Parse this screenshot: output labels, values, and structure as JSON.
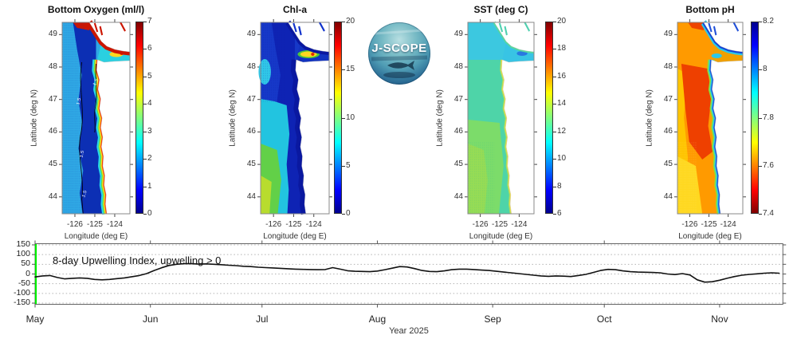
{
  "figure": {
    "background": "#ffffff"
  },
  "logo": {
    "text": "J-SCOPE"
  },
  "colormap_stops": [
    [
      "#00008f",
      0
    ],
    [
      "#0000ff",
      12
    ],
    [
      "#00ffff",
      37
    ],
    [
      "#80ff80",
      50
    ],
    [
      "#ffff00",
      63
    ],
    [
      "#ff0000",
      88
    ],
    [
      "#800000",
      100
    ]
  ],
  "panels": [
    {
      "title": "Bottom Oxygen (ml/l)",
      "xlabel": "Longitude (deg E)",
      "ylabel": "Latitude (deg N)",
      "xticks": [
        "-126",
        "-125",
        "-124"
      ],
      "yticks": [
        "49",
        "48",
        "47",
        "46",
        "45",
        "44"
      ],
      "colorbar": {
        "min": 0,
        "max": 7,
        "ticks": [
          "0",
          "1",
          "2",
          "3",
          "4",
          "5",
          "6",
          "7"
        ],
        "reversed": false
      },
      "contour_label": "1.5",
      "art": {
        "base": "#2fa8e4",
        "regions": [
          [
            "deep_mid",
            "#0c2fb4"
          ]
        ],
        "strait": "#2ad0e0",
        "blobs": [
          [
            "#ffd81e",
            80,
            40,
            10,
            3.5
          ],
          [
            "#e02800",
            88,
            39,
            3,
            2
          ]
        ],
        "coast_bands": [
          [
            "#28d8e8",
            14
          ],
          [
            "#6ee03c",
            9
          ],
          [
            "#ffe01e",
            6
          ],
          [
            "#f23c08",
            3
          ]
        ],
        "vi_bands": [
          [
            "#cc1600",
            9
          ]
        ],
        "top_blob": "#cc1600",
        "fjord": "#cc1600",
        "contour": "#000000",
        "contour_label_color": "#ffffff",
        "stipple": "#0c2fb4"
      }
    },
    {
      "title": "Chl-a",
      "xlabel": "Longitude (deg E)",
      "ylabel": "Latitude (deg N)",
      "xticks": [
        "-126",
        "-125",
        "-124"
      ],
      "yticks": [
        "49",
        "48",
        "47",
        "46",
        "45",
        "44"
      ],
      "colorbar": {
        "min": 0,
        "max": 20,
        "ticks": [
          "0",
          "5",
          "10",
          "15",
          "20"
        ],
        "reversed": false
      },
      "art": {
        "base": "#1638c8",
        "regions": [
          [
            "deep_mid",
            "#0e23b4"
          ],
          [
            "left_lower",
            "#22c4e0"
          ],
          [
            "corner_sw",
            "#62d048"
          ],
          [
            "corner_sw2",
            "#b8dc2e"
          ]
        ],
        "strait": "#1233c0",
        "blobs": [
          [
            "#30c8e8",
            6,
            62,
            9,
            16
          ],
          [
            "#50c838",
            70,
            40,
            16,
            5
          ],
          [
            "#ffd820",
            70,
            40,
            12,
            3.5
          ],
          [
            "#e02800",
            76,
            40,
            2.5,
            2
          ]
        ],
        "coast_bands": [
          [
            "#0a18a0",
            14
          ]
        ],
        "vi_bands": [
          [
            "#0a18a0",
            8
          ]
        ],
        "fjord": "#1133cc",
        "stipple": "#0a18a0"
      }
    },
    {
      "title": "SST (deg C)",
      "xlabel": "Longitude (deg E)",
      "ylabel": "Latitude (deg N)",
      "xticks": [
        "-126",
        "-125",
        "-124"
      ],
      "yticks": [
        "49",
        "48",
        "47",
        "46",
        "45",
        "44"
      ],
      "colorbar": {
        "min": 6,
        "max": 20,
        "ticks": [
          "6",
          "8",
          "10",
          "12",
          "14",
          "16",
          "18",
          "20"
        ],
        "reversed": false
      },
      "art": {
        "base": "#4ed4a8",
        "regions": [
          [
            "sst_south",
            "#7cdc6a"
          ],
          [
            "corner_sw",
            "#96dc55"
          ],
          [
            "north_band",
            "#3cc8e0"
          ]
        ],
        "strait": "#38c4e4",
        "blobs": [
          [
            "#2878e0",
            82,
            39,
            8,
            3
          ],
          [
            "#f08020",
            57,
            100,
            1.6,
            1.6
          ],
          [
            "#f09030",
            58,
            112,
            1.2,
            1.2
          ]
        ],
        "coast_bands": [
          [
            "#aade5c",
            5
          ],
          [
            "#ffe040",
            2
          ]
        ],
        "vi_bands": [
          [
            "#58d89c",
            4
          ]
        ],
        "fjord": "#50d0b0",
        "stipple": "#2ab890"
      }
    },
    {
      "title": "Bottom pH",
      "xlabel": "Longitude (deg E)",
      "ylabel": "Latitude (deg N)",
      "xticks": [
        "-126",
        "-125",
        "-124"
      ],
      "yticks": [
        "49",
        "48",
        "47",
        "46",
        "45",
        "44"
      ],
      "colorbar": {
        "min": 7.4,
        "max": 8.2,
        "ticks": [
          "7.4",
          "7.6",
          "7.8",
          "8",
          "8.2"
        ],
        "reversed": true
      },
      "art": {
        "base": "#ff9a00",
        "regions": [
          [
            "ph_yellow_w",
            "#ffc400"
          ],
          [
            "ph_yellow_s",
            "#ffd820"
          ],
          [
            "mid_red",
            "#ee4000"
          ],
          [
            "top_blob",
            "#ee4400"
          ]
        ],
        "strait": "#f0a000",
        "blobs": [
          [
            "#2cc8e8",
            60,
            42,
            8,
            3
          ]
        ],
        "coast_bands": [
          [
            "#8ae03c",
            11
          ],
          [
            "#2cc8e8",
            7
          ],
          [
            "#1a50d8",
            3.5
          ]
        ],
        "vi_bands": [
          [
            "#2cc8e8",
            9
          ],
          [
            "#1243d8",
            4.5
          ]
        ],
        "fjord": "#2050d8",
        "stipple": "#ffe680"
      }
    }
  ],
  "timeseries": {
    "annotation": "8-day Upwelling Index, upwelling > 0",
    "xlabel": "Year 2025",
    "months": [
      "May",
      "Jun",
      "Jul",
      "Aug",
      "Sep",
      "Oct",
      "Nov"
    ],
    "yticks": [
      150,
      100,
      50,
      0,
      -50,
      -100,
      -150
    ],
    "line_color": "#111111",
    "start_line_color": "#00ee00",
    "grid_color": "#b3b3b3",
    "frame_color": "#666666"
  },
  "chart_data": [
    {
      "type": "heatmap",
      "title": "Bottom Oxygen (ml/l)",
      "xlabel": "Longitude (deg E)",
      "ylabel": "Latitude (deg N)",
      "x_range": [
        -126.6,
        -123.2
      ],
      "y_range": [
        43.5,
        49.4
      ],
      "xticks": [
        -126,
        -125,
        -124
      ],
      "yticks": [
        49,
        48,
        47,
        46,
        45,
        44
      ],
      "colorbar": {
        "min": 0,
        "max": 7,
        "ticks": [
          0,
          1,
          2,
          3,
          4,
          5,
          6,
          7
        ]
      },
      "colormap": "jet",
      "notes": "Dark blue low-oxygen pool (<1.5) over mid/outer shelf; cyan-green-yellow-red band (3-7) hugging the coast, Strait of Juan de Fuca and Vancouver Island; black 1.5 contour with white inline labels"
    },
    {
      "type": "heatmap",
      "title": "Chl-a",
      "xlabel": "Longitude (deg E)",
      "ylabel": "Latitude (deg N)",
      "x_range": [
        -126.6,
        -123.2
      ],
      "y_range": [
        43.5,
        49.4
      ],
      "xticks": [
        -126,
        -125,
        -124
      ],
      "yticks": [
        49,
        48,
        47,
        46,
        45,
        44
      ],
      "colorbar": {
        "min": 0,
        "max": 20,
        "ticks": [
          0,
          5,
          10,
          15,
          20
        ]
      },
      "colormap": "jet",
      "notes": "Low chl (dark blue, <3) nearshore and north; moderate cyan-green-yellow (5-12) offshore to the southwest; high yellow-red streak (15-20) in the Strait of Juan de Fuca"
    },
    {
      "type": "heatmap",
      "title": "SST (deg C)",
      "xlabel": "Longitude (deg E)",
      "ylabel": "Latitude (deg N)",
      "x_range": [
        -126.6,
        -123.2
      ],
      "y_range": [
        43.5,
        49.4
      ],
      "xticks": [
        -126,
        -125,
        -124
      ],
      "yticks": [
        49,
        48,
        47,
        46,
        45,
        44
      ],
      "colorbar": {
        "min": 6,
        "max": 20,
        "ticks": [
          6,
          8,
          10,
          12,
          14,
          16,
          18,
          20
        ]
      },
      "colormap": "jet",
      "notes": "Fairly uniform 12-14 C (teal-green); cooler cyan 10-11 C north of ~48.3N and in the strait; slightly warmer 14 C patches in the south; small warm orange spots near the coast around 46.5-47N"
    },
    {
      "type": "heatmap",
      "title": "Bottom pH",
      "xlabel": "Longitude (deg E)",
      "ylabel": "Latitude (deg N)",
      "x_range": [
        -126.6,
        -123.2
      ],
      "y_range": [
        43.5,
        49.4
      ],
      "xticks": [
        -126,
        -125,
        -124
      ],
      "yticks": [
        49,
        48,
        47,
        46,
        45,
        44
      ],
      "colorbar": {
        "min": 7.4,
        "max": 8.2,
        "ticks": [
          7.4,
          7.6,
          7.8,
          8,
          8.2
        ]
      },
      "colormap": "jet_reversed",
      "notes": "Low pH offshore (orange-red 7.5-7.6, yellow 7.65 southwest); high pH blue-cyan strip (8.0-8.2) along the coast and Vancouver Island; mixed cyan/orange in the strait"
    },
    {
      "type": "line",
      "title": "8-day Upwelling Index, upwelling > 0",
      "xlabel": "Year 2025",
      "x_unit": "days since May 1, 2025",
      "x": [
        0,
        2,
        4,
        6,
        8,
        10,
        12,
        14,
        16,
        18,
        20,
        22,
        24,
        26,
        28,
        30,
        32,
        34,
        36,
        38,
        40,
        42,
        44,
        46,
        48,
        50,
        52,
        54,
        56,
        58,
        60,
        62,
        64,
        66,
        68,
        70,
        72,
        74,
        76,
        78,
        80,
        82,
        84,
        86,
        88,
        90,
        92,
        94,
        96,
        98,
        100,
        102,
        104,
        106,
        108,
        110,
        112,
        114,
        116,
        118,
        120,
        122,
        124,
        126,
        128,
        130,
        132,
        134,
        136,
        138,
        140,
        142,
        144,
        146,
        148,
        150,
        152,
        154,
        156,
        158,
        160,
        162,
        164,
        166,
        168,
        170,
        172,
        174,
        176,
        178,
        180,
        182,
        184,
        186,
        188,
        190,
        192,
        194,
        196,
        198,
        200
      ],
      "y": [
        -15,
        -10,
        -8,
        -18,
        -25,
        -22,
        -20,
        -22,
        -28,
        -30,
        -28,
        -24,
        -20,
        -14,
        -8,
        2,
        18,
        32,
        44,
        50,
        53,
        53,
        51,
        52,
        50,
        48,
        45,
        43,
        40,
        38,
        35,
        33,
        31,
        29,
        27,
        25,
        24,
        23,
        22,
        23,
        33,
        25,
        17,
        14,
        13,
        12,
        15,
        22,
        30,
        38,
        36,
        28,
        18,
        13,
        12,
        16,
        22,
        25,
        25,
        23,
        20,
        18,
        14,
        10,
        6,
        2,
        -2,
        -6,
        -10,
        -12,
        -10,
        -11,
        -13,
        -8,
        -2,
        8,
        18,
        24,
        22,
        16,
        12,
        10,
        9,
        8,
        6,
        0,
        -3,
        2,
        -5,
        -30,
        -42,
        -40,
        -32,
        -22,
        -13,
        -6,
        -2,
        1,
        4,
        6,
        4
      ],
      "ylim": [
        -156,
        156
      ],
      "yticks": [
        150,
        100,
        50,
        0,
        -50,
        -100,
        -150
      ],
      "month_ticks": [
        {
          "label": "May",
          "day": 0
        },
        {
          "label": "Jun",
          "day": 31
        },
        {
          "label": "Jul",
          "day": 61
        },
        {
          "label": "Aug",
          "day": 92
        },
        {
          "label": "Sep",
          "day": 123
        },
        {
          "label": "Oct",
          "day": 153
        },
        {
          "label": "Nov",
          "day": 184
        }
      ],
      "start_marker_day": 0,
      "grid": "dotted horizontal at every 50"
    }
  ]
}
